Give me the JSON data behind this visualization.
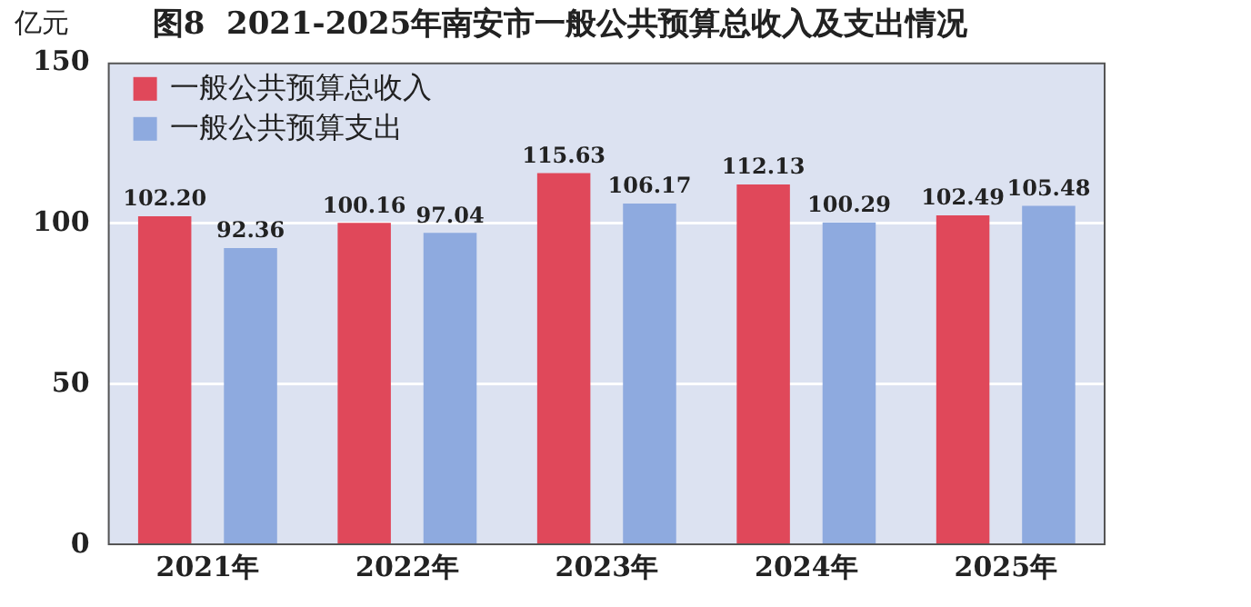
{
  "chart_data": {
    "type": "bar",
    "title": "图8  2021-2025年南安市一般公共预算总收入及支出情况",
    "ylabel": "亿元",
    "categories": [
      "2021年",
      "2022年",
      "2023年",
      "2024年",
      "2025年"
    ],
    "series": [
      {
        "name": "一般公共预算总收入",
        "color": "#e0485a",
        "values": [
          102.2,
          100.16,
          115.63,
          112.13,
          102.49
        ]
      },
      {
        "name": "一般公共预算支出",
        "color": "#8eaadf",
        "values": [
          92.36,
          97.04,
          106.17,
          100.29,
          105.48
        ]
      }
    ],
    "value_labels": [
      [
        "102.20",
        "100.16",
        "115.63",
        "112.13",
        "102.49"
      ],
      [
        "92.36",
        "97.04",
        "106.17",
        "100.29",
        "105.48"
      ]
    ],
    "ylim": [
      0,
      150
    ],
    "yticks": [
      0,
      50,
      100,
      150
    ],
    "grid": "y",
    "legend": "top left"
  }
}
